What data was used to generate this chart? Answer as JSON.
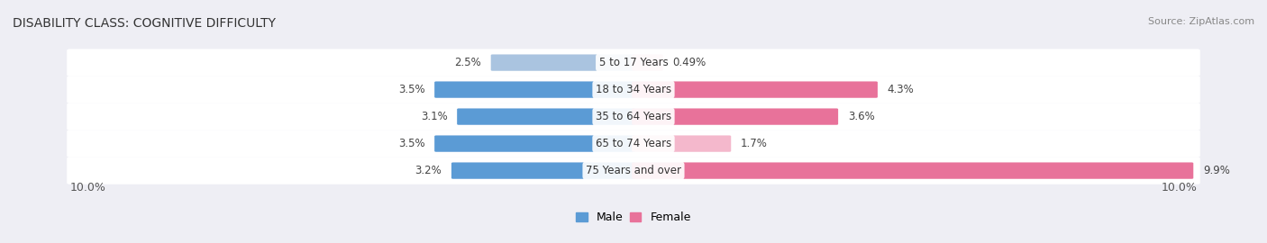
{
  "title": "DISABILITY CLASS: COGNITIVE DIFFICULTY",
  "source": "Source: ZipAtlas.com",
  "categories": [
    "5 to 17 Years",
    "18 to 34 Years",
    "35 to 64 Years",
    "65 to 74 Years",
    "75 Years and over"
  ],
  "male_values": [
    2.5,
    3.5,
    3.1,
    3.5,
    3.2
  ],
  "female_values": [
    0.49,
    4.3,
    3.6,
    1.7,
    9.9
  ],
  "male_labels": [
    "2.5%",
    "3.5%",
    "3.1%",
    "3.5%",
    "3.2%"
  ],
  "female_labels": [
    "0.49%",
    "4.3%",
    "3.6%",
    "1.7%",
    "9.9%"
  ],
  "male_colors": [
    "#aac4e0",
    "#5b9bd5",
    "#5b9bd5",
    "#5b9bd5",
    "#5b9bd5"
  ],
  "female_colors": [
    "#f4b8cc",
    "#e8729a",
    "#e8729a",
    "#f4b8cc",
    "#e8729a"
  ],
  "male_legend_color": "#5b9bd5",
  "female_legend_color": "#e8729a",
  "xlim": 10.0,
  "axis_label_left": "10.0%",
  "axis_label_right": "10.0%",
  "background_color": "#eeeef4",
  "row_bg_color": "#ffffff",
  "title_fontsize": 10,
  "label_fontsize": 8.5,
  "source_fontsize": 8
}
